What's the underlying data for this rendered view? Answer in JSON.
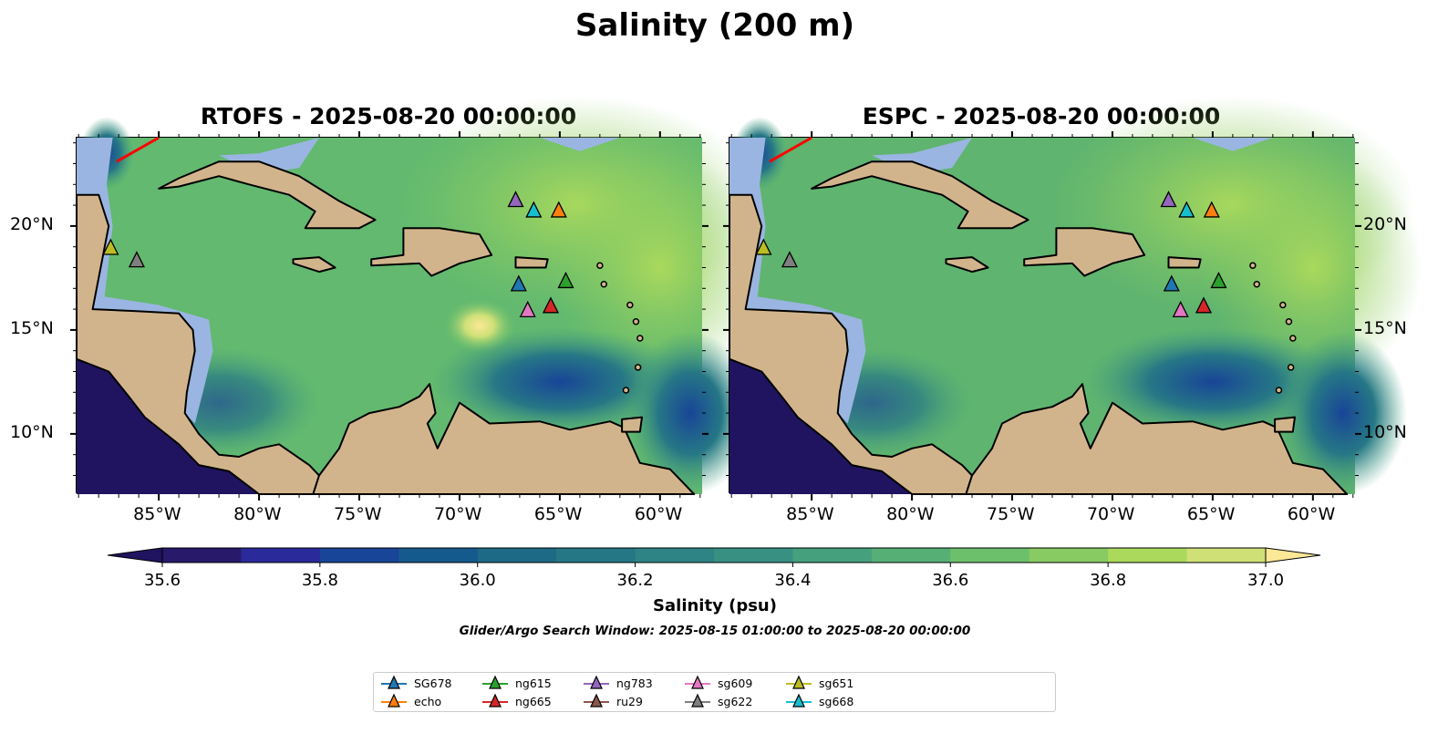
{
  "title": "Salinity (200 m)",
  "panels": [
    {
      "title": "RTOFS - 2025-08-20 00:00:00"
    },
    {
      "title": "ESPC - 2025-08-20 00:00:00"
    }
  ],
  "lon_ticks": [
    {
      "value": -85,
      "label": "85°W"
    },
    {
      "value": -80,
      "label": "80°W"
    },
    {
      "value": -75,
      "label": "75°W"
    },
    {
      "value": -70,
      "label": "70°W"
    },
    {
      "value": -65,
      "label": "65°W"
    },
    {
      "value": -60,
      "label": "60°W"
    }
  ],
  "lat_ticks": [
    {
      "value": 20,
      "label": "20°N"
    },
    {
      "value": 15,
      "label": "15°N"
    },
    {
      "value": 10,
      "label": "10°N"
    }
  ],
  "colorbar": {
    "label": "Salinity (psu)",
    "min": 35.6,
    "max": 37.0,
    "step": 0.1,
    "ticks": [
      {
        "value": 35.6,
        "label": "35.6"
      },
      {
        "value": 35.8,
        "label": "35.8"
      },
      {
        "value": 36.0,
        "label": "36.0"
      },
      {
        "value": 36.2,
        "label": "36.2"
      },
      {
        "value": 36.4,
        "label": "36.4"
      },
      {
        "value": 36.6,
        "label": "36.6"
      },
      {
        "value": 36.8,
        "label": "36.8"
      },
      {
        "value": 37.0,
        "label": "37.0"
      }
    ],
    "colors": [
      "#28196b",
      "#2b2a9b",
      "#184597",
      "#155a8d",
      "#1c6a86",
      "#267786",
      "#2e8385",
      "#389083",
      "#45a07e",
      "#56b076",
      "#6cc06c",
      "#88cb62",
      "#aad95c",
      "#cfe077"
    ],
    "under_color": "#201460",
    "over_color": "#fde898"
  },
  "search_window": "Glider/Argo Search Window: 2025-08-15 01:00:00 to 2025-08-20 00:00:00",
  "gliders": [
    {
      "name": "SG678",
      "color": "#1f77b4",
      "lon": -67.05,
      "lat": 17.15
    },
    {
      "name": "echo",
      "color": "#ff7f0e",
      "lon": -65.05,
      "lat": 20.7
    },
    {
      "name": "ng615",
      "color": "#2ca02c",
      "lon": -64.7,
      "lat": 17.3
    },
    {
      "name": "ng665",
      "color": "#d62728",
      "lon": -65.45,
      "lat": 16.1
    },
    {
      "name": "ng783",
      "color": "#9467bd",
      "lon": -67.2,
      "lat": 21.2
    },
    {
      "name": "ru29",
      "color": "#8c564b",
      "lon": null,
      "lat": null
    },
    {
      "name": "sg609",
      "color": "#e377c2",
      "lon": -66.6,
      "lat": 15.9
    },
    {
      "name": "sg622",
      "color": "#7f7f7f",
      "lon": -86.1,
      "lat": 18.3
    },
    {
      "name": "sg651",
      "color": "#bcbd22",
      "lon": -87.4,
      "lat": 18.9
    },
    {
      "name": "sg668",
      "color": "#17becf",
      "lon": -66.3,
      "lat": 20.7
    }
  ],
  "colors": {
    "land": "#d2b48c",
    "shelf": "#9ab5e1",
    "track": "#ff0000"
  }
}
